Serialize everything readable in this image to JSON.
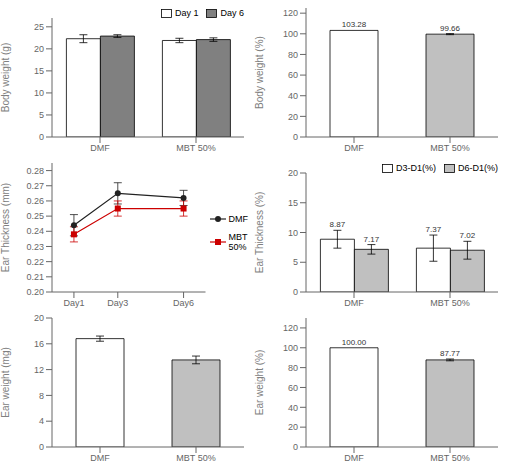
{
  "chart_data": [
    {
      "type": "bar",
      "categories": [
        "DMF",
        "MBT 50%"
      ],
      "series": [
        {
          "name": "Day 1",
          "color": "white",
          "values": [
            22.3,
            21.9
          ],
          "errors": [
            0.9,
            0.5
          ]
        },
        {
          "name": "Day 6",
          "color": "#808080",
          "values": [
            22.9,
            22.1
          ],
          "errors": [
            0.3,
            0.4
          ]
        }
      ],
      "ylabel": "Body weight (g)",
      "ylim": [
        0,
        27
      ],
      "yticks": [
        0,
        5,
        10,
        15,
        20,
        25
      ],
      "legend": "upper right"
    },
    {
      "type": "bar",
      "categories": [
        "DMF",
        "MBT 50%"
      ],
      "values": [
        103.28,
        99.66
      ],
      "errors": [
        0.0,
        0.5
      ],
      "colors": [
        "white",
        "#c0c0c0"
      ],
      "data_labels": true,
      "ylabel": "Body weight (%)",
      "ylim": [
        0,
        125
      ],
      "yticks": [
        0,
        20,
        40,
        60,
        80,
        100,
        120
      ]
    },
    {
      "type": "line",
      "x": [
        1,
        3,
        6
      ],
      "series": [
        {
          "name": "DMF",
          "color": "#222222",
          "marker": "circle",
          "values": [
            0.244,
            0.265,
            0.262
          ],
          "errors": [
            0.007,
            0.007,
            0.005
          ]
        },
        {
          "name": "MBT\n50%",
          "color": "#cc0000",
          "marker": "square",
          "values": [
            0.238,
            0.255,
            0.255
          ],
          "errors": [
            0.005,
            0.005,
            0.005
          ]
        }
      ],
      "ylabel": "Ear Thickness (mm)",
      "xlim": [
        0,
        7
      ],
      "xticks": [
        {
          "value": 1,
          "label": "Day1"
        },
        {
          "value": 3,
          "label": "Day3"
        },
        {
          "value": 6,
          "label": "Day6"
        }
      ],
      "ylim": [
        0.2,
        0.285
      ],
      "yticks": [
        {
          "value": 0.2,
          "label": "0.20"
        },
        0.21,
        0.22,
        0.23,
        0.24,
        0.25,
        0.26,
        0.27,
        0.28
      ],
      "legend": "center right"
    },
    {
      "type": "bar",
      "categories": [
        "DMF",
        "MBT 50%"
      ],
      "series": [
        {
          "name": "D3-D1(%)",
          "color": "white",
          "values": [
            8.87,
            7.37
          ],
          "errors": [
            1.5,
            2.2
          ]
        },
        {
          "name": "D6-D1(%)",
          "color": "#c0c0c0",
          "values": [
            7.17,
            7.02
          ],
          "errors": [
            0.8,
            1.5
          ]
        }
      ],
      "data_labels": true,
      "ylabel": "Ear Thickness (%)",
      "ylim": [
        0,
        20
      ],
      "yticks": [
        0,
        5,
        10,
        15,
        20
      ],
      "legend": "upper right"
    },
    {
      "type": "bar",
      "categories": [
        "DMF",
        "MBT 50%"
      ],
      "values": [
        16.8,
        13.5
      ],
      "errors": [
        0.4,
        0.6
      ],
      "colors": [
        "white",
        "#c0c0c0"
      ],
      "ylabel": "Ear weight (mg)",
      "ylim": [
        0,
        20
      ],
      "yticks": [
        0,
        4,
        8,
        12,
        16,
        20
      ]
    },
    {
      "type": "bar",
      "categories": [
        "DMF",
        "MBT 50%"
      ],
      "values": [
        100.0,
        87.77
      ],
      "value_labels": [
        "100.00",
        "87.77"
      ],
      "errors": [
        0.0,
        0.9
      ],
      "colors": [
        "white",
        "#c0c0c0"
      ],
      "data_labels": true,
      "ylabel": "Ear weight (%)",
      "ylim": [
        0,
        130
      ],
      "yticks": [
        0,
        20,
        40,
        60,
        80,
        100,
        120
      ]
    }
  ]
}
